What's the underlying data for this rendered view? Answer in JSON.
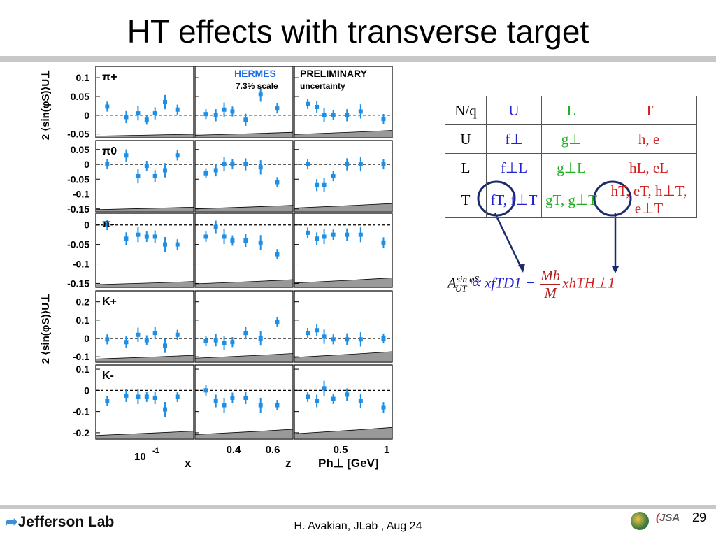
{
  "slide": {
    "title": "HT effects with transverse target",
    "author": "H. Avakian, JLab ,  Aug 24",
    "page": "29",
    "logo": "Jefferson Lab",
    "jsa": "JSA"
  },
  "table": {
    "header": [
      "N/q",
      "U",
      "L",
      "T"
    ],
    "rows": [
      [
        "U",
        "f⊥",
        "g⊥",
        "h, e"
      ],
      [
        "L",
        "f⊥L",
        "g⊥L",
        "hL, eL"
      ],
      [
        "T",
        "fT, f⊥T",
        "gT, g⊥T",
        "hT, eT, h⊥T, e⊥T"
      ]
    ]
  },
  "formula": {
    "lhs": "A",
    "lhs_sup": "sin φS",
    "lhs_sub": "UT",
    "term1": "∝ xfTD1 −",
    "frac_num": "Mh",
    "frac_den": "M",
    "term2": "xhTH⊥1"
  },
  "colors": {
    "U": "#2222d0",
    "L": "#20b020",
    "T": "#d02020",
    "data_points": "#1e8fe6",
    "systematic_band": "#999999",
    "arrow": "#1a2a6c"
  },
  "chart_data": {
    "type": "scatter",
    "experiment_label": "HERMES",
    "scale_label": "7.3% scale",
    "preliminary_label": "PRELIMINARY",
    "uncertainty_label": "uncertainty",
    "ylabel": "2 ⟨sin(φS)⟩U⊥",
    "columns": [
      {
        "xlabel": "x",
        "ticks": [
          "10",
          "-1"
        ],
        "log": true
      },
      {
        "xlabel": "z",
        "ticks": [
          "0.4",
          "0.6"
        ]
      },
      {
        "xlabel": "Ph⊥ [GeV]",
        "ticks": [
          "0.5",
          "1"
        ]
      }
    ],
    "rows": [
      {
        "name": "π+",
        "ylim": [
          -0.06,
          0.13
        ],
        "ticks": [
          "0.1",
          "0.05",
          "0",
          "-0.05"
        ],
        "series": [
          {
            "x": [
              0.025,
              0.045,
              0.065,
              0.085,
              0.11,
              0.15,
              0.22
            ],
            "y": [
              0.023,
              -0.005,
              0.005,
              -0.012,
              0.005,
              0.035,
              0.015
            ]
          },
          {
            "x": [
              0.22,
              0.28,
              0.33,
              0.38,
              0.46,
              0.55,
              0.65
            ],
            "y": [
              0.003,
              0.0,
              0.015,
              0.01,
              -0.012,
              0.055,
              0.018
            ]
          },
          {
            "x": [
              0.12,
              0.22,
              0.3,
              0.4,
              0.55,
              0.7,
              0.95
            ],
            "y": [
              0.03,
              0.022,
              0.0,
              0.0,
              0.0,
              0.01,
              -0.01
            ]
          }
        ]
      },
      {
        "name": "π0",
        "ylim": [
          -0.16,
          0.08
        ],
        "ticks": [
          "0.05",
          "0",
          "-0.05",
          "-0.1",
          "-0.15"
        ],
        "series": [
          {
            "x": [
              0.025,
              0.045,
              0.065,
              0.085,
              0.11,
              0.15,
              0.22
            ],
            "y": [
              0.0,
              0.03,
              -0.04,
              -0.005,
              -0.04,
              -0.02,
              0.03
            ]
          },
          {
            "x": [
              0.22,
              0.28,
              0.33,
              0.38,
              0.46,
              0.55,
              0.65
            ],
            "y": [
              -0.03,
              -0.02,
              0.0,
              0.0,
              0.0,
              -0.01,
              -0.06
            ]
          },
          {
            "x": [
              0.12,
              0.22,
              0.3,
              0.4,
              0.55,
              0.7,
              0.95
            ],
            "y": [
              0.0,
              -0.07,
              -0.07,
              -0.04,
              0.0,
              0.0,
              0.0
            ]
          }
        ]
      },
      {
        "name": "π-",
        "ylim": [
          -0.16,
          0.03
        ],
        "ticks": [
          "0",
          "-0.05",
          "-0.1",
          "-0.15"
        ],
        "series": [
          {
            "x": [
              0.025,
              0.045,
              0.065,
              0.085,
              0.11,
              0.15,
              0.22
            ],
            "y": [
              0.0,
              -0.035,
              -0.025,
              -0.03,
              -0.03,
              -0.05,
              -0.05
            ]
          },
          {
            "x": [
              0.22,
              0.28,
              0.33,
              0.38,
              0.46,
              0.55,
              0.65
            ],
            "y": [
              -0.03,
              -0.005,
              -0.03,
              -0.04,
              -0.04,
              -0.045,
              -0.075
            ]
          },
          {
            "x": [
              0.12,
              0.22,
              0.3,
              0.4,
              0.55,
              0.7,
              0.95
            ],
            "y": [
              -0.02,
              -0.035,
              -0.03,
              -0.025,
              -0.025,
              -0.025,
              -0.045
            ]
          }
        ]
      },
      {
        "name": "K+",
        "ylim": [
          -0.13,
          0.26
        ],
        "ticks": [
          "0.2",
          "0.1",
          "0",
          "-0.1"
        ],
        "series": [
          {
            "x": [
              0.025,
              0.045,
              0.065,
              0.085,
              0.11,
              0.15,
              0.22
            ],
            "y": [
              -0.005,
              -0.02,
              0.02,
              -0.01,
              0.03,
              -0.04,
              0.02
            ]
          },
          {
            "x": [
              0.22,
              0.28,
              0.33,
              0.38,
              0.46,
              0.55,
              0.65
            ],
            "y": [
              -0.015,
              -0.01,
              -0.025,
              -0.02,
              0.03,
              0.0,
              0.09
            ]
          },
          {
            "x": [
              0.12,
              0.22,
              0.3,
              0.4,
              0.55,
              0.7,
              0.95
            ],
            "y": [
              0.03,
              0.045,
              0.01,
              -0.005,
              -0.005,
              -0.005,
              0.0
            ]
          }
        ]
      },
      {
        "name": "K-",
        "ylim": [
          -0.23,
          0.12
        ],
        "ticks": [
          "0.1",
          "0",
          "-0.1",
          "-0.2"
        ],
        "series": [
          {
            "x": [
              0.025,
              0.045,
              0.065,
              0.085,
              0.11,
              0.15,
              0.22
            ],
            "y": [
              -0.05,
              -0.025,
              -0.03,
              -0.03,
              -0.035,
              -0.09,
              -0.03
            ]
          },
          {
            "x": [
              0.22,
              0.28,
              0.33,
              0.38,
              0.46,
              0.55,
              0.65
            ],
            "y": [
              0.0,
              -0.05,
              -0.07,
              -0.035,
              -0.035,
              -0.07,
              -0.07
            ]
          },
          {
            "x": [
              0.12,
              0.22,
              0.3,
              0.4,
              0.55,
              0.7,
              0.95
            ],
            "y": [
              -0.03,
              -0.05,
              0.01,
              -0.04,
              -0.02,
              -0.05,
              -0.08
            ]
          }
        ]
      }
    ]
  }
}
